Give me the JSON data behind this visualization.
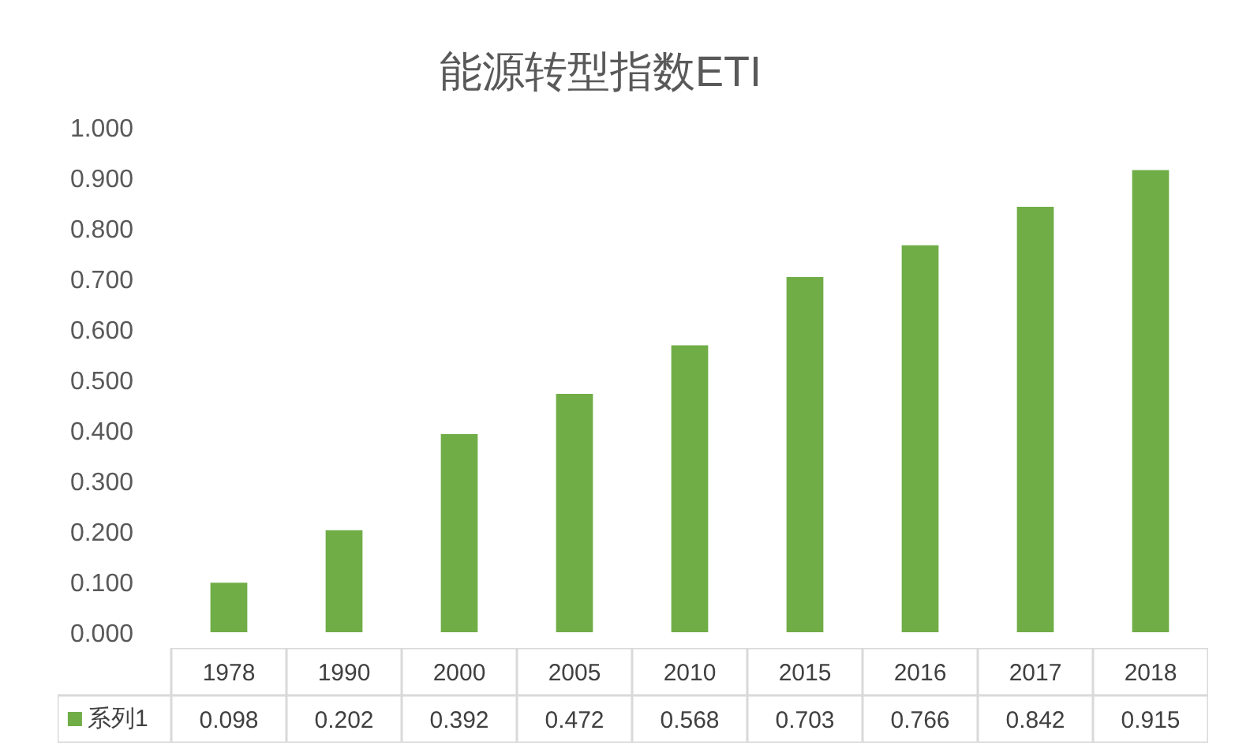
{
  "chart_data": {
    "type": "bar",
    "title": "能源转型指数ETI",
    "categories": [
      "1978",
      "1990",
      "2000",
      "2005",
      "2010",
      "2015",
      "2016",
      "2017",
      "2018"
    ],
    "series": [
      {
        "name": "系列1",
        "color": "#70ad47",
        "values": [
          0.098,
          0.202,
          0.392,
          0.472,
          0.568,
          0.703,
          0.766,
          0.842,
          0.915
        ]
      }
    ],
    "ylim": [
      0,
      1
    ],
    "yticks": [
      {
        "value": 0,
        "label": "0.000"
      },
      {
        "value": 0.1,
        "label": "0.100"
      },
      {
        "value": 0.2,
        "label": "0.200"
      },
      {
        "value": 0.3,
        "label": "0.300"
      },
      {
        "value": 0.4,
        "label": "0.400"
      },
      {
        "value": 0.5,
        "label": "0.500"
      },
      {
        "value": 0.6,
        "label": "0.600"
      },
      {
        "value": 0.7,
        "label": "0.700"
      },
      {
        "value": 0.8,
        "label": "0.800"
      },
      {
        "value": 0.9,
        "label": "0.900"
      },
      {
        "value": 1,
        "label": "1.000"
      }
    ],
    "grid": false,
    "legend": "bottom",
    "data_labels": true
  }
}
